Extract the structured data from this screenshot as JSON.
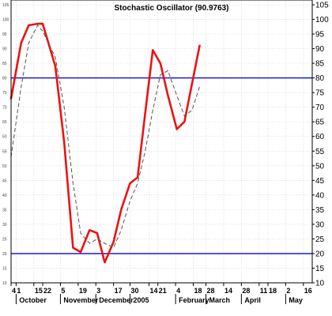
{
  "chart_data": {
    "type": "line",
    "title": "Stochastic Oscillator (90.9763)",
    "xlabel": "",
    "ylabel": "",
    "ylim": [
      10,
      105
    ],
    "y_ticks": [
      10,
      15,
      20,
      25,
      30,
      35,
      40,
      45,
      50,
      55,
      60,
      65,
      70,
      75,
      80,
      85,
      90,
      95,
      100,
      105
    ],
    "x_tick_labels": [
      "4",
      "1",
      "15",
      "22",
      "5",
      "19",
      "3",
      "17",
      "30",
      "14",
      "21",
      "4",
      "18",
      "28",
      "14",
      "28",
      "11",
      "18",
      "2",
      "16"
    ],
    "month_labels": [
      "October",
      "November",
      "December",
      "2005",
      "February",
      "March",
      "April",
      "May"
    ],
    "reference_lines": [
      80,
      20
    ],
    "grid": true,
    "colors": {
      "main_line": "#ee1111",
      "signal_line": "#555555",
      "reference": "#1a1adf",
      "grid": "#cccccc"
    },
    "series": [
      {
        "style": "solid-red",
        "values": [
          {
            "x": "2004-09-27",
            "y": 73
          },
          {
            "x": "2004-10-05",
            "y": 92
          },
          {
            "x": "2004-10-11",
            "y": 98
          },
          {
            "x": "2004-10-18",
            "y": 98.5
          },
          {
            "x": "2004-10-22",
            "y": 98.5
          },
          {
            "x": "2004-11-01",
            "y": 84
          },
          {
            "x": "2004-11-08",
            "y": 58
          },
          {
            "x": "2004-11-15",
            "y": 22
          },
          {
            "x": "2004-11-21",
            "y": 20.5
          },
          {
            "x": "2004-11-28",
            "y": 28
          },
          {
            "x": "2004-12-04",
            "y": 27
          },
          {
            "x": "2004-12-10",
            "y": 17
          },
          {
            "x": "2004-12-17",
            "y": 24
          },
          {
            "x": "2004-12-23",
            "y": 35
          },
          {
            "x": "2004-12-30",
            "y": 44
          },
          {
            "x": "2005-01-05",
            "y": 46
          },
          {
            "x": "2005-01-11",
            "y": 68
          },
          {
            "x": "2005-01-17",
            "y": 89.5
          },
          {
            "x": "2005-01-23",
            "y": 85
          },
          {
            "x": "2005-01-29",
            "y": 74
          },
          {
            "x": "2005-02-05",
            "y": 62.5
          },
          {
            "x": "2005-02-11",
            "y": 65
          },
          {
            "x": "2005-02-17",
            "y": 78
          },
          {
            "x": "2005-02-23",
            "y": 91
          }
        ]
      },
      {
        "style": "dashed-gray",
        "values": [
          {
            "x": "2004-09-27",
            "y": 53
          },
          {
            "x": "2004-10-05",
            "y": 77
          },
          {
            "x": "2004-10-11",
            "y": 92
          },
          {
            "x": "2004-10-18",
            "y": 98
          },
          {
            "x": "2004-10-22",
            "y": 96
          },
          {
            "x": "2004-11-01",
            "y": 87
          },
          {
            "x": "2004-11-08",
            "y": 70
          },
          {
            "x": "2004-11-15",
            "y": 44
          },
          {
            "x": "2004-11-21",
            "y": 27
          },
          {
            "x": "2004-11-28",
            "y": 23.5
          },
          {
            "x": "2004-12-04",
            "y": 25
          },
          {
            "x": "2004-12-10",
            "y": 23.5
          },
          {
            "x": "2004-12-17",
            "y": 22
          },
          {
            "x": "2004-12-23",
            "y": 28
          },
          {
            "x": "2004-12-30",
            "y": 38
          },
          {
            "x": "2005-01-05",
            "y": 44
          },
          {
            "x": "2005-01-11",
            "y": 55
          },
          {
            "x": "2005-01-17",
            "y": 69
          },
          {
            "x": "2005-01-23",
            "y": 81
          },
          {
            "x": "2005-01-29",
            "y": 82.5
          },
          {
            "x": "2005-02-05",
            "y": 74
          },
          {
            "x": "2005-02-11",
            "y": 67
          },
          {
            "x": "2005-02-17",
            "y": 69
          },
          {
            "x": "2005-02-23",
            "y": 77
          }
        ]
      }
    ]
  }
}
